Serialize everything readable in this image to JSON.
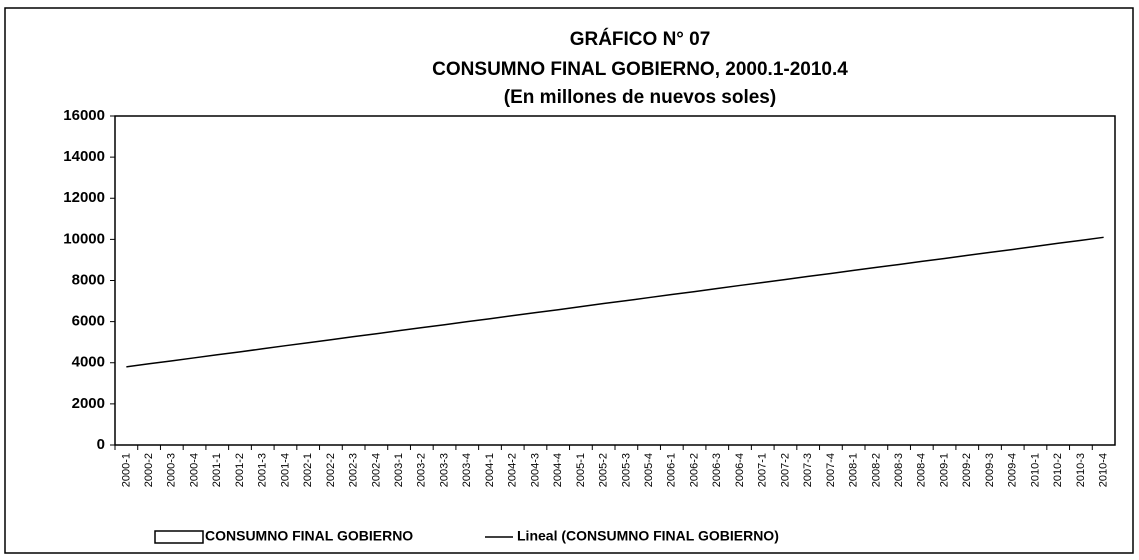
{
  "chart_data": {
    "type": "bar",
    "title": [
      "GRÁFICO N° 07",
      "CONSUMNO FINAL GOBIERNO, 2000.1-2010.4",
      "(En millones de nuevos soles)"
    ],
    "categories": [
      "2000-1",
      "2000-2",
      "2000-3",
      "2000-4",
      "2001-1",
      "2001-2",
      "2001-3",
      "2001-4",
      "2002-1",
      "2002-2",
      "2002-3",
      "2002-4",
      "2003-1",
      "2003-2",
      "2003-3",
      "2003-4",
      "2004-1",
      "2004-2",
      "2004-3",
      "2004-4",
      "2005-1",
      "2005-2",
      "2005-3",
      "2005-4",
      "2006-1",
      "2006-2",
      "2006-3",
      "2006-4",
      "2007-1",
      "2007-2",
      "2007-3",
      "2007-4",
      "2008-1",
      "2008-2",
      "2008-3",
      "2008-4",
      "2009-1",
      "2009-2",
      "2009-3",
      "2009-4",
      "2010-1",
      "2010-2",
      "2010-3",
      "2010-4"
    ],
    "series": [
      {
        "name": "CONSUMNO FINAL GOBIERNO",
        "type": "bar",
        "color": "#ffffff",
        "values": [
          null,
          null,
          null,
          null,
          null,
          null,
          null,
          null,
          null,
          null,
          null,
          null,
          null,
          null,
          null,
          null,
          null,
          null,
          null,
          null,
          null,
          null,
          null,
          null,
          null,
          null,
          null,
          null,
          null,
          null,
          null,
          null,
          null,
          null,
          null,
          null,
          null,
          null,
          null,
          null,
          null,
          null,
          null,
          null
        ]
      },
      {
        "name": "Lineal (CONSUMNO FINAL GOBIERNO)",
        "type": "line",
        "color": "#000000",
        "values": [
          3800,
          3950,
          4090,
          4240,
          4390,
          4530,
          4680,
          4830,
          4970,
          5120,
          5270,
          5410,
          5560,
          5710,
          5850,
          6000,
          6140,
          6290,
          6440,
          6580,
          6730,
          6880,
          7020,
          7170,
          7320,
          7460,
          7610,
          7760,
          7900,
          8050,
          8200,
          8340,
          8490,
          8640,
          8780,
          8930,
          9070,
          9220,
          9370,
          9510,
          9660,
          9810,
          9950,
          10100
        ]
      }
    ],
    "ylim": [
      0,
      16000
    ],
    "yticks": [
      0,
      2000,
      4000,
      6000,
      8000,
      10000,
      12000,
      14000,
      16000
    ],
    "grid": false,
    "legend": "bottom"
  }
}
